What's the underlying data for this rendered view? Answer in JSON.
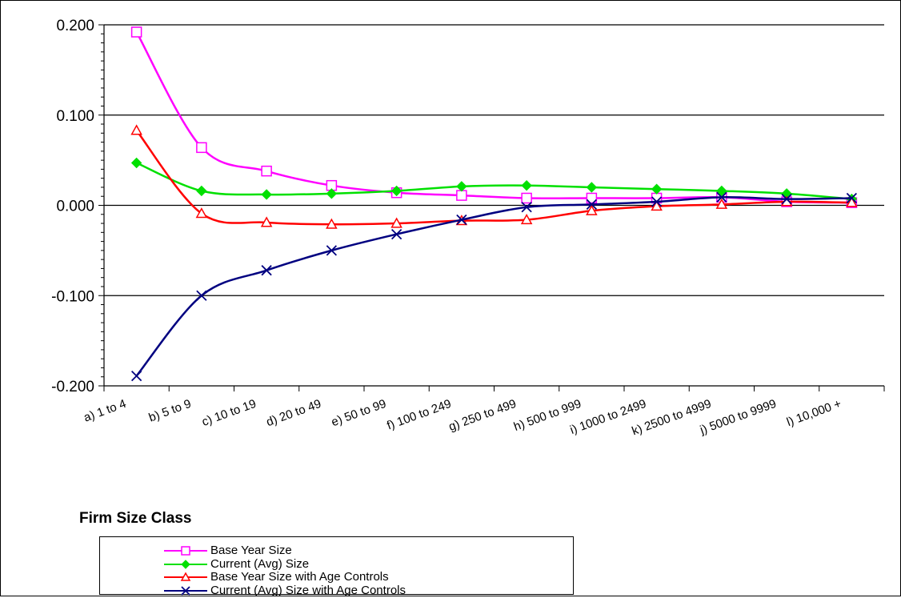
{
  "chart_data": {
    "type": "line",
    "title": "",
    "xlabel": "Firm Size Class",
    "ylabel": "",
    "ylim": [
      -0.2,
      0.2
    ],
    "y_ticks": [
      "0.200",
      "0.100",
      "0.000",
      "-0.100",
      "-0.200"
    ],
    "y_tick_values": [
      0.2,
      0.1,
      0.0,
      -0.1,
      -0.2
    ],
    "categories": [
      "a) 1 to 4",
      "b) 5 to 9",
      "c) 10 to 19",
      "d) 20 to 49",
      "e) 50 to 99",
      "f) 100 to 249",
      "g) 250 to 499",
      "h) 500 to 999",
      "i) 1000 to 2499",
      "k) 2500 to 4999",
      "j) 5000 to 9999",
      "l) 10,000 +"
    ],
    "grid": "horizontal major gridlines",
    "legend_position": "bottom",
    "series": [
      {
        "name": "Base Year Size",
        "color": "#ff00ff",
        "marker": "open-square",
        "values": [
          0.192,
          0.064,
          0.038,
          0.022,
          0.014,
          0.011,
          0.008,
          0.008,
          0.008,
          0.009,
          0.004,
          0.003
        ]
      },
      {
        "name": "Current (Avg) Size",
        "color": "#00e000",
        "marker": "filled-diamond",
        "values": [
          0.047,
          0.016,
          0.012,
          0.013,
          0.016,
          0.021,
          0.022,
          0.02,
          0.018,
          0.016,
          0.013,
          0.007
        ]
      },
      {
        "name": "Base Year Size with Age Controls",
        "color": "#ff0000",
        "marker": "open-triangle",
        "values": [
          0.083,
          -0.009,
          -0.019,
          -0.021,
          -0.02,
          -0.017,
          -0.016,
          -0.006,
          -0.001,
          0.001,
          0.004,
          0.003
        ]
      },
      {
        "name": "Current (Avg) Size with Age Controls",
        "color": "#000080",
        "marker": "x",
        "values": [
          -0.189,
          -0.1,
          -0.072,
          -0.05,
          -0.032,
          -0.016,
          -0.002,
          0.001,
          0.004,
          0.009,
          0.007,
          0.008
        ]
      }
    ]
  }
}
